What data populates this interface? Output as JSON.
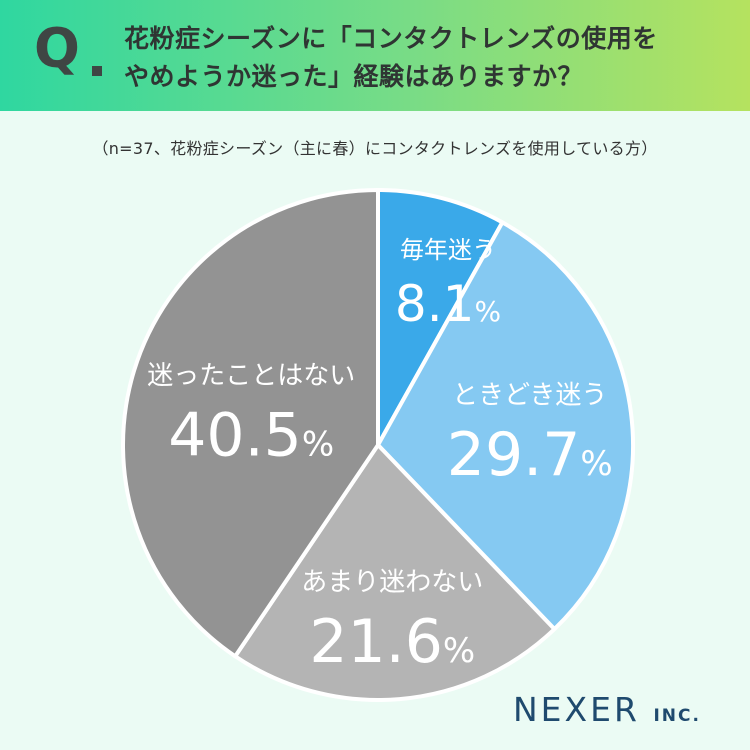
{
  "header": {
    "q_letter": "Q",
    "question_line1": "花粉症シーズンに「コンタクトレンズの使用を",
    "question_line2": "やめようか迷った」経験はありますか？"
  },
  "subtitle": "（n=37、花粉症シーズン（主に春）にコンタクトレンズを使用している方）",
  "logo": {
    "name": "NEXER",
    "suffix": "INC."
  },
  "colors": {
    "slice_1": "#3aa9e9",
    "slice_2": "#85c9f2",
    "slice_3": "#b4b4b4",
    "slice_4": "#939393",
    "header_start": "#2fd7a0",
    "header_end": "#b5e25f",
    "background": "#ebfbf4"
  },
  "chart_data": {
    "type": "pie",
    "title": "",
    "slices": [
      {
        "label": "毎年迷う",
        "value": 8.1,
        "display": "8.1",
        "unit": "%"
      },
      {
        "label": "ときどき迷う",
        "value": 29.7,
        "display": "29.7",
        "unit": "%"
      },
      {
        "label": "あまり迷わない",
        "value": 21.6,
        "display": "21.6",
        "unit": "%"
      },
      {
        "label": "迷ったことはない",
        "value": 40.5,
        "display": "40.5",
        "unit": "%"
      }
    ],
    "start": "12 o'clock",
    "direction": "clockwise"
  }
}
